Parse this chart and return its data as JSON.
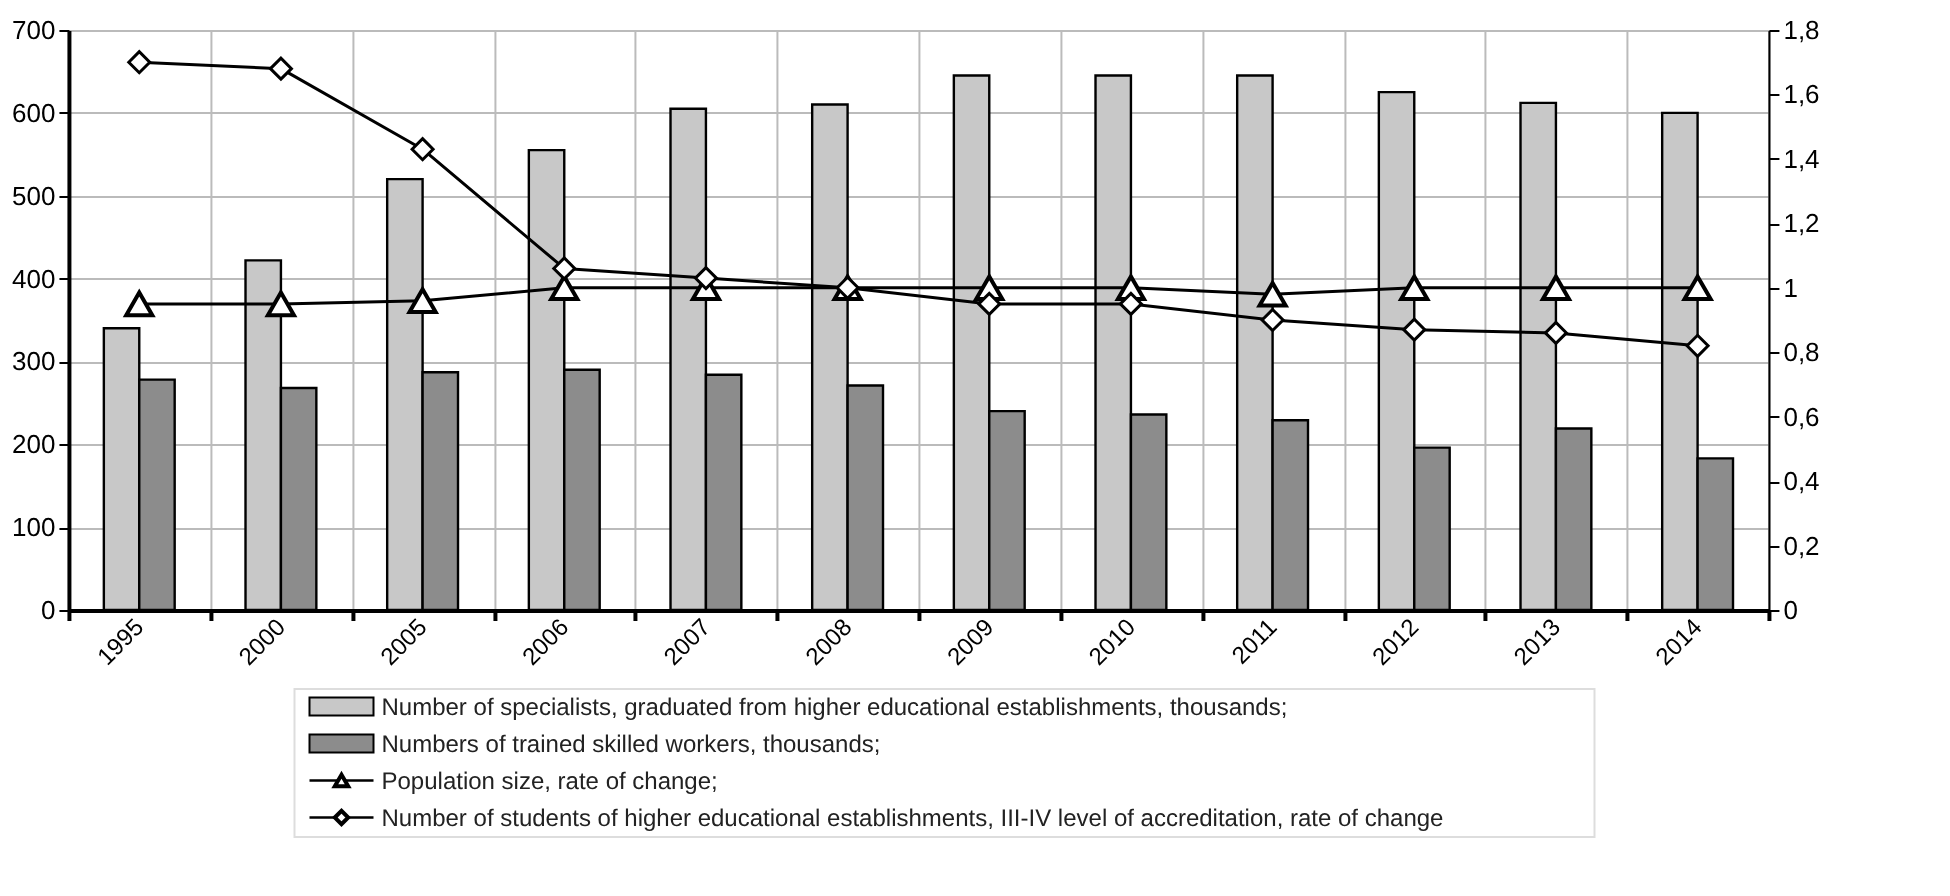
{
  "chart_data": {
    "type": "bar",
    "categories": [
      "1995",
      "2000",
      "2005",
      "2006",
      "2007",
      "2008",
      "2009",
      "2010",
      "2011",
      "2012",
      "2013",
      "2014"
    ],
    "series": [
      {
        "name": "Number of specialists, graduated from higher educational establishments, thousands;",
        "color": "#c8c8c8",
        "values": [
          340,
          422,
          520,
          555,
          605,
          610,
          645,
          645,
          645,
          625,
          612,
          600
        ]
      },
      {
        "name": "Numbers of trained skilled workers, thousands;",
        "color": "#8c8c8c",
        "values": [
          278,
          268,
          287,
          290,
          284,
          271,
          240,
          236,
          229,
          196,
          219,
          183
        ]
      },
      {
        "name": "Population size, rate of change;",
        "type": "line",
        "axis": "y2",
        "marker": "triangle",
        "color": "#000000",
        "values": [
          0.95,
          0.95,
          0.96,
          1.0,
          1.0,
          1.0,
          1.0,
          1.0,
          0.98,
          1.0,
          1.0,
          1.0
        ]
      },
      {
        "name": "Number of students of higher educational establishments, III-IV level of accreditation, rate of change",
        "type": "line",
        "axis": "y2",
        "marker": "diamond",
        "color": "#000000",
        "values": [
          1.7,
          1.68,
          1.43,
          1.06,
          1.03,
          1.0,
          0.95,
          0.95,
          0.9,
          0.87,
          0.86,
          0.82
        ]
      }
    ],
    "ylim": [
      0,
      700
    ],
    "yticks": [
      0,
      100,
      200,
      300,
      400,
      500,
      600,
      700
    ],
    "y2lim": [
      0,
      1.8
    ],
    "y2ticks": [
      0,
      {
        "value": 0.2,
        "label": "0,2"
      },
      {
        "value": 0.4,
        "label": "0,4"
      },
      {
        "value": 0.6,
        "label": "0,6"
      },
      {
        "value": 0.8,
        "label": "0,8"
      },
      1,
      {
        "value": 1.2,
        "label": "1,2"
      },
      {
        "value": 1.4,
        "label": "1,4"
      },
      {
        "value": 1.6,
        "label": "1,6"
      },
      {
        "value": 1.8,
        "label": "1,8"
      }
    ],
    "grid": true,
    "legend": "bottom"
  }
}
